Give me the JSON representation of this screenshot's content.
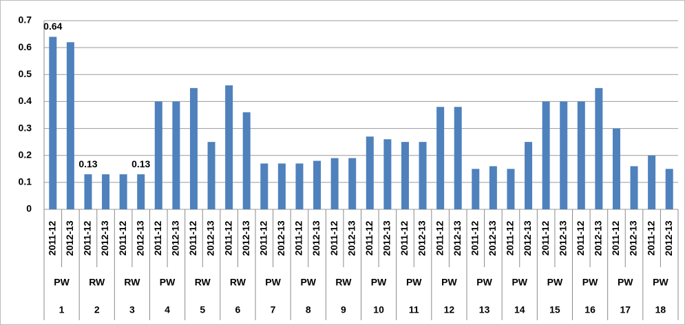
{
  "chart_data": {
    "type": "bar",
    "categories": [
      "2011-12",
      "2012-13",
      "2011-12",
      "2012-13",
      "2011-12",
      "2012-13",
      "2011-12",
      "2012-13",
      "2011-12",
      "2012-13",
      "2011-12",
      "2012-13",
      "2011-12",
      "2012-13",
      "2011-12",
      "2012-13",
      "2011-12",
      "2012-13",
      "2011-12",
      "2012-13",
      "2011-12",
      "2012-13",
      "2011-12",
      "2012-13",
      "2011-12",
      "2012-13",
      "2011-12",
      "2012-13",
      "2011-12",
      "2012-13",
      "2011-12",
      "2012-13",
      "2011-12",
      "2012-13",
      "2011-12",
      "2012-13"
    ],
    "values": [
      0.64,
      0.62,
      0.13,
      0.13,
      0.13,
      0.13,
      0.4,
      0.4,
      0.45,
      0.25,
      0.46,
      0.36,
      0.17,
      0.17,
      0.17,
      0.18,
      0.19,
      0.19,
      0.27,
      0.26,
      0.25,
      0.25,
      0.38,
      0.38,
      0.15,
      0.16,
      0.15,
      0.25,
      0.4,
      0.4,
      0.4,
      0.45,
      0.3,
      0.16,
      0.2,
      0.15
    ],
    "value_labels": [
      "0.64",
      null,
      "0.13",
      null,
      null,
      "0.13",
      null,
      null,
      null,
      null,
      null,
      null,
      null,
      null,
      null,
      null,
      null,
      null,
      null,
      null,
      null,
      null,
      null,
      null,
      null,
      null,
      null,
      null,
      null,
      null,
      null,
      null,
      null,
      null,
      null,
      null
    ],
    "group_types": [
      "PW",
      "RW",
      "RW",
      "PW",
      "RW",
      "RW",
      "PW",
      "PW",
      "RW",
      "PW",
      "PW",
      "PW",
      "PW",
      "PW",
      "PW",
      "PW",
      "PW",
      "PW"
    ],
    "group_numbers": [
      "1",
      "2",
      "3",
      "4",
      "5",
      "6",
      "7",
      "8",
      "9",
      "10",
      "11",
      "12",
      "13",
      "14",
      "15",
      "16",
      "17",
      "18"
    ],
    "color": "#4f81bd",
    "ylim": [
      0,
      0.7
    ],
    "yticks": [
      0,
      0.1,
      0.2,
      0.3,
      0.4,
      0.5,
      0.6,
      0.7
    ],
    "grid": true
  }
}
